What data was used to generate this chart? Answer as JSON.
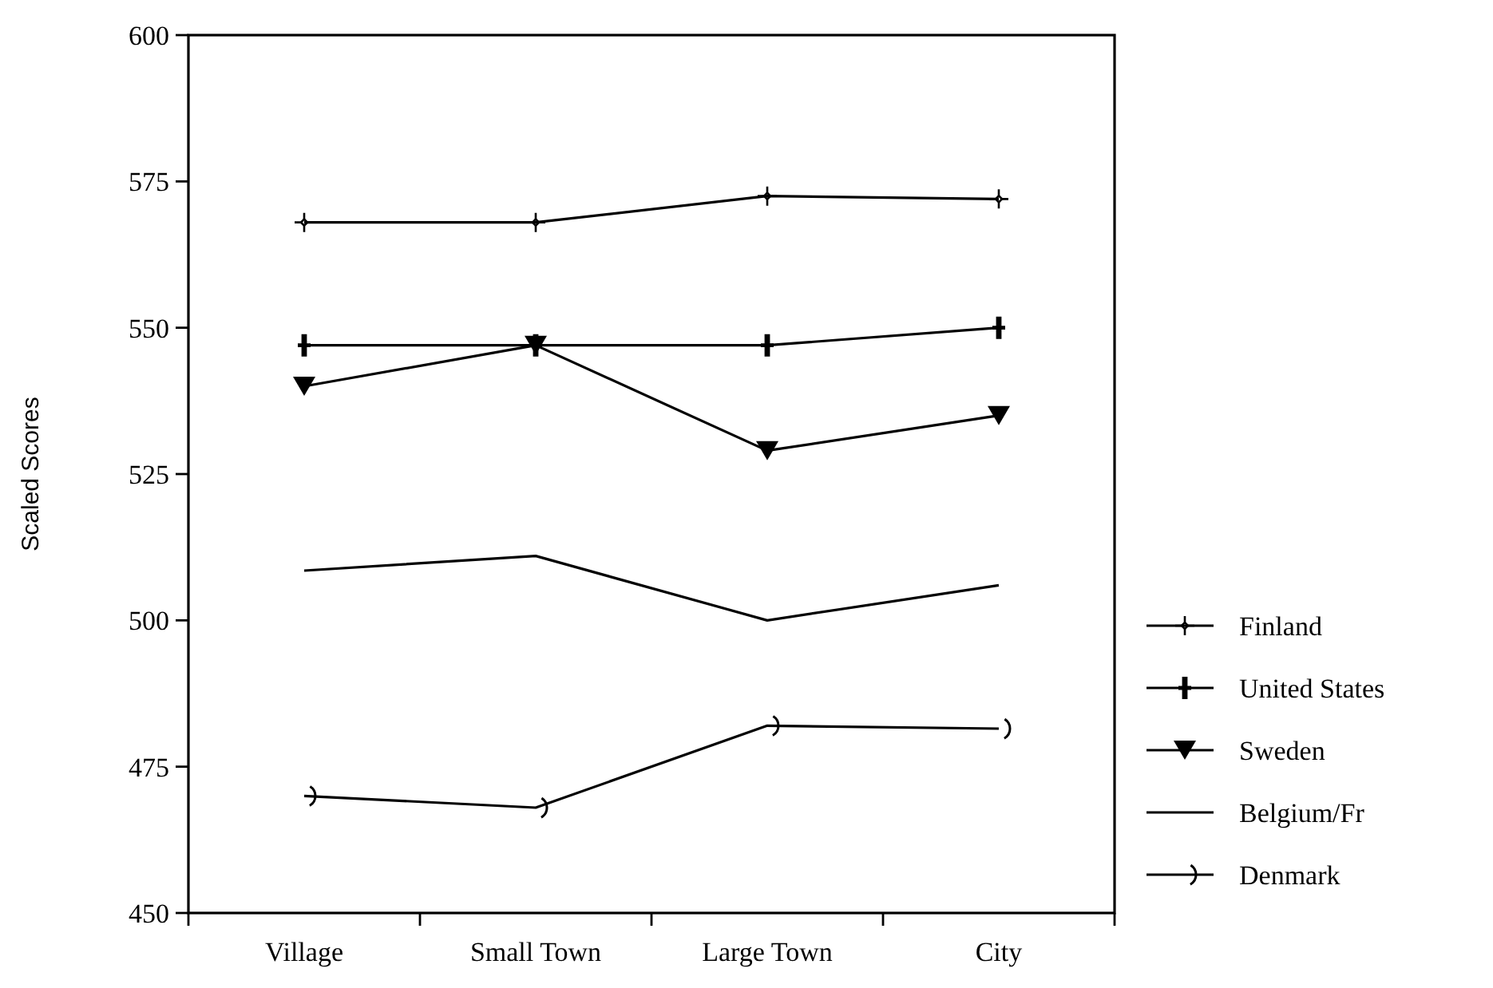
{
  "chart_data": {
    "type": "line",
    "ylabel": "Scaled Scores",
    "categories": [
      "Village",
      "Small Town",
      "Large Town",
      "City"
    ],
    "ylim": [
      450,
      600
    ],
    "yticks": [
      450,
      475,
      500,
      525,
      550,
      575,
      600
    ],
    "grid": false,
    "legend": "right",
    "series": [
      {
        "name": "Finland",
        "color": "#000000",
        "marker": "diamond",
        "values": [
          568,
          568,
          572.5,
          572
        ]
      },
      {
        "name": "United States",
        "color": "#000000",
        "marker": "cross",
        "values": [
          547,
          547,
          547,
          550
        ]
      },
      {
        "name": "Sweden",
        "color": "#000000",
        "marker": "triangle",
        "values": [
          540,
          547,
          529,
          535
        ]
      },
      {
        "name": "Belgium/Fr",
        "color": "#000000",
        "marker": "none",
        "values": [
          508.5,
          511,
          500,
          506
        ]
      },
      {
        "name": "Denmark",
        "color": "#000000",
        "marker": "circle",
        "values": [
          470,
          468,
          482,
          481.5
        ]
      }
    ]
  }
}
